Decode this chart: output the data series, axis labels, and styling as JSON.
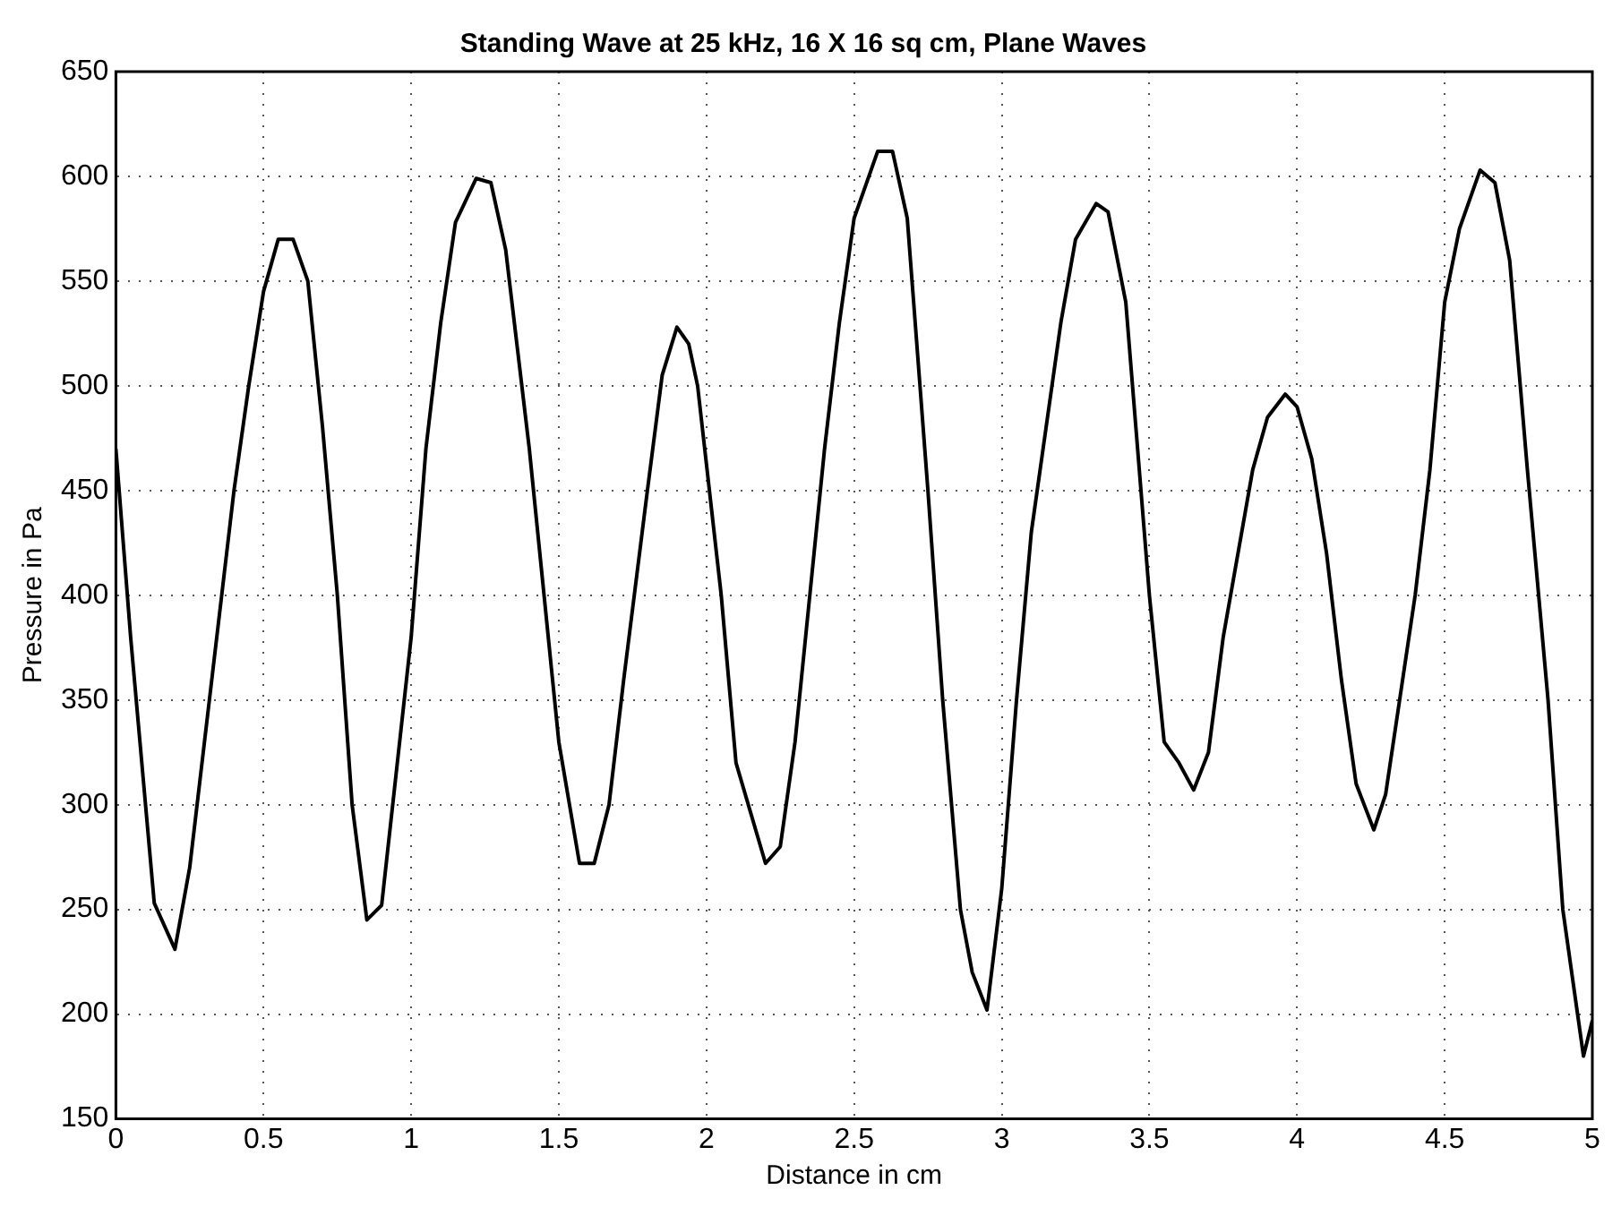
{
  "chart_data": {
    "type": "line",
    "title": "Standing Wave at 25 kHz, 16 X 16 sq cm, Plane Waves",
    "xlabel": "Distance in cm",
    "ylabel": "Pressure in Pa",
    "x": [
      0,
      0.05,
      0.13,
      0.2,
      0.25,
      0.3,
      0.4,
      0.45,
      0.5,
      0.55,
      0.6,
      0.65,
      0.7,
      0.75,
      0.8,
      0.85,
      0.9,
      1.0,
      1.05,
      1.1,
      1.15,
      1.22,
      1.27,
      1.32,
      1.4,
      1.45,
      1.5,
      1.57,
      1.62,
      1.67,
      1.72,
      1.8,
      1.85,
      1.9,
      1.94,
      1.97,
      2.05,
      2.1,
      2.2,
      2.25,
      2.3,
      2.4,
      2.45,
      2.5,
      2.58,
      2.63,
      2.68,
      2.75,
      2.8,
      2.86,
      2.9,
      2.95,
      3.0,
      3.05,
      3.1,
      3.2,
      3.25,
      3.32,
      3.36,
      3.42,
      3.5,
      3.55,
      3.6,
      3.65,
      3.7,
      3.75,
      3.85,
      3.9,
      3.96,
      4.0,
      4.05,
      4.1,
      4.15,
      4.2,
      4.26,
      4.3,
      4.4,
      4.45,
      4.5,
      4.55,
      4.62,
      4.67,
      4.72,
      4.78,
      4.85,
      4.9,
      4.95,
      4.97,
      5.0
    ],
    "values": [
      470,
      380,
      253,
      231,
      270,
      330,
      450,
      500,
      545,
      570,
      570,
      550,
      480,
      400,
      300,
      245,
      252,
      380,
      470,
      530,
      578,
      599,
      597,
      565,
      470,
      400,
      330,
      272,
      272,
      300,
      360,
      450,
      505,
      528,
      520,
      500,
      400,
      320,
      272,
      280,
      330,
      470,
      530,
      580,
      612,
      612,
      580,
      450,
      350,
      250,
      220,
      202,
      260,
      350,
      430,
      530,
      570,
      587,
      583,
      540,
      400,
      330,
      320,
      307,
      325,
      380,
      460,
      485,
      496,
      490,
      465,
      420,
      360,
      310,
      288,
      305,
      400,
      460,
      540,
      575,
      603,
      597,
      560,
      460,
      350,
      250,
      200,
      180,
      197
    ],
    "color": "#000000",
    "xlim": [
      0,
      5
    ],
    "ylim": [
      150,
      650
    ],
    "xticks": [
      0,
      0.5,
      1,
      1.5,
      2,
      2.5,
      3,
      3.5,
      4,
      4.5,
      5
    ],
    "yticks": [
      150,
      200,
      250,
      300,
      350,
      400,
      450,
      500,
      550,
      600,
      650
    ],
    "grid": true,
    "legend": false,
    "marker": "none",
    "line_style": "solid"
  }
}
